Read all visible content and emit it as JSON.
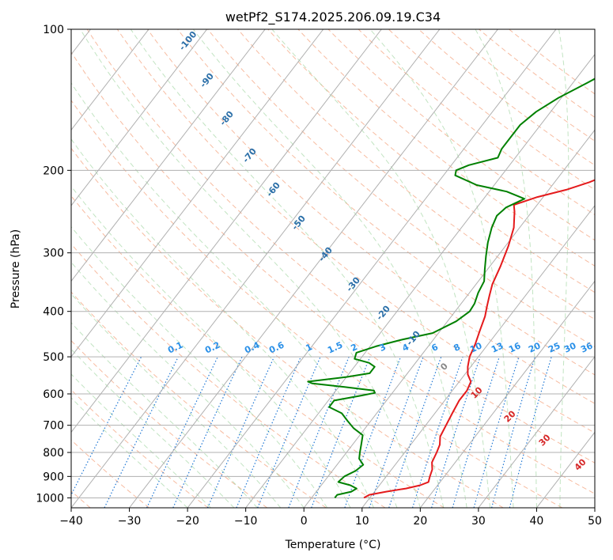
{
  "chart_data": {
    "type": "line",
    "title": "wetPf2_S174.2025.206.09.19.C34",
    "xlabel": "Temperature (°C)",
    "ylabel": "Pressure (hPa)",
    "xlim": [
      -40,
      50
    ],
    "ylim": [
      1050,
      100
    ],
    "y_scale": "log",
    "grid": true,
    "x_ticks": [
      "−40",
      "−30",
      "−20",
      "−10",
      "0",
      "10",
      "20",
      "30",
      "40",
      "50"
    ],
    "y_ticks": [
      "100",
      "200",
      "300",
      "400",
      "500",
      "600",
      "700",
      "800",
      "900",
      "1000"
    ],
    "dry_adiabat_labels": [
      "-100",
      "-90",
      "-80",
      "-70",
      "-60",
      "-50",
      "-40",
      "-30",
      "-20",
      "-10"
    ],
    "mixing_ratio_labels": [
      "0.1",
      "0.2",
      "0.4",
      "0.6",
      "1",
      "1.5",
      "2",
      "3",
      "4",
      "6",
      "8",
      "10",
      "13",
      "16",
      "20",
      "25",
      "30",
      "36"
    ],
    "moist_adiabat_labels": [
      "0",
      "10",
      "20",
      "30",
      "40"
    ],
    "series": [
      {
        "color": "#e41a1c",
        "points": [
          [
            9,
            1000
          ],
          [
            9.5,
            985
          ],
          [
            12,
            970
          ],
          [
            15,
            955
          ],
          [
            17,
            940
          ],
          [
            18,
            925
          ],
          [
            17.5,
            900
          ],
          [
            17,
            870
          ],
          [
            16,
            840
          ],
          [
            15.5,
            800
          ],
          [
            15,
            770
          ],
          [
            14,
            740
          ],
          [
            13.5,
            700
          ],
          [
            13,
            660
          ],
          [
            12.5,
            620
          ],
          [
            12.5,
            590
          ],
          [
            12,
            565
          ],
          [
            10.5,
            545
          ],
          [
            9.5,
            525
          ],
          [
            8.5,
            500
          ],
          [
            7.8,
            470
          ],
          [
            6.8,
            440
          ],
          [
            5.8,
            410
          ],
          [
            4.8,
            390
          ],
          [
            3.8,
            370
          ],
          [
            2.8,
            350
          ],
          [
            1.8,
            320
          ],
          [
            0.5,
            290
          ],
          [
            -1,
            265
          ],
          [
            -3,
            245
          ],
          [
            -4,
            237
          ],
          [
            -1,
            228
          ],
          [
            3,
            220
          ],
          [
            6,
            212
          ],
          [
            8,
            205
          ],
          [
            9.5,
            200
          ],
          [
            10.5,
            193
          ],
          [
            11.3,
            185
          ],
          [
            12.3,
            175
          ],
          [
            14,
            165
          ],
          [
            16,
            155
          ],
          [
            18.5,
            145
          ],
          [
            20.5,
            135
          ],
          [
            22.3,
            125
          ],
          [
            24.5,
            115
          ],
          [
            26.7,
            105
          ],
          [
            28,
            100
          ]
        ]
      },
      {
        "color": "#008000",
        "points": [
          [
            4,
            1000
          ],
          [
            4,
            985
          ],
          [
            6,
            970
          ],
          [
            6.5,
            955
          ],
          [
            5,
            940
          ],
          [
            2.5,
            925
          ],
          [
            2.8,
            900
          ],
          [
            4,
            875
          ],
          [
            4.5,
            850
          ],
          [
            3,
            825
          ],
          [
            2.3,
            800
          ],
          [
            1.5,
            770
          ],
          [
            0.5,
            735
          ],
          [
            -2,
            710
          ],
          [
            -4,
            685
          ],
          [
            -6,
            660
          ],
          [
            -9,
            640
          ],
          [
            -9,
            620
          ],
          [
            -5,
            605
          ],
          [
            -3,
            597
          ],
          [
            -3.5,
            590
          ],
          [
            -9,
            580
          ],
          [
            -15,
            570
          ],
          [
            -16,
            565
          ],
          [
            -10,
            552
          ],
          [
            -6.5,
            542
          ],
          [
            -6.5,
            525
          ],
          [
            -8,
            515
          ],
          [
            -11,
            505
          ],
          [
            -11.5,
            490
          ],
          [
            -9,
            475
          ],
          [
            -5.5,
            460
          ],
          [
            -1,
            445
          ],
          [
            1.5,
            420
          ],
          [
            2.5,
            400
          ],
          [
            2.3,
            385
          ],
          [
            1.5,
            365
          ],
          [
            1,
            345
          ],
          [
            -0.5,
            325
          ],
          [
            -2,
            305
          ],
          [
            -3.5,
            285
          ],
          [
            -4.8,
            265
          ],
          [
            -5.5,
            250
          ],
          [
            -5,
            240
          ],
          [
            -3,
            230
          ],
          [
            -7,
            222
          ],
          [
            -13,
            215
          ],
          [
            -18,
            205
          ],
          [
            -18.5,
            200
          ],
          [
            -17,
            195
          ],
          [
            -13,
            188
          ],
          [
            -13.5,
            180
          ],
          [
            -13.5,
            170
          ],
          [
            -13.5,
            160
          ],
          [
            -12.5,
            150
          ],
          [
            -10.5,
            140
          ],
          [
            -7.5,
            130
          ],
          [
            -4.5,
            120
          ],
          [
            -2,
            110
          ],
          [
            0.5,
            100
          ]
        ]
      }
    ]
  }
}
